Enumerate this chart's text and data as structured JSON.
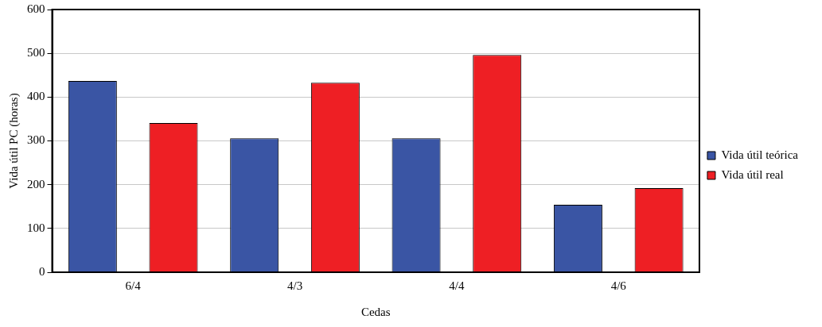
{
  "chart_data": {
    "type": "bar",
    "xlabel": "Cedas",
    "ylabel": "Vida útil PC (horas)",
    "categories": [
      "6/4",
      "4/3",
      "4/4",
      "4/6"
    ],
    "series": [
      {
        "name": "Vida útil teórica",
        "color": "#3a55a4",
        "values": [
          437,
          306,
          306,
          154
        ]
      },
      {
        "name": "Vida útil real",
        "color": "#ee1f24",
        "values": [
          341,
          433,
          496,
          192
        ]
      }
    ],
    "ylim": [
      0,
      600
    ],
    "yticks": [
      0,
      100,
      200,
      300,
      400,
      500,
      600
    ],
    "grid": "y",
    "legend": "right"
  }
}
